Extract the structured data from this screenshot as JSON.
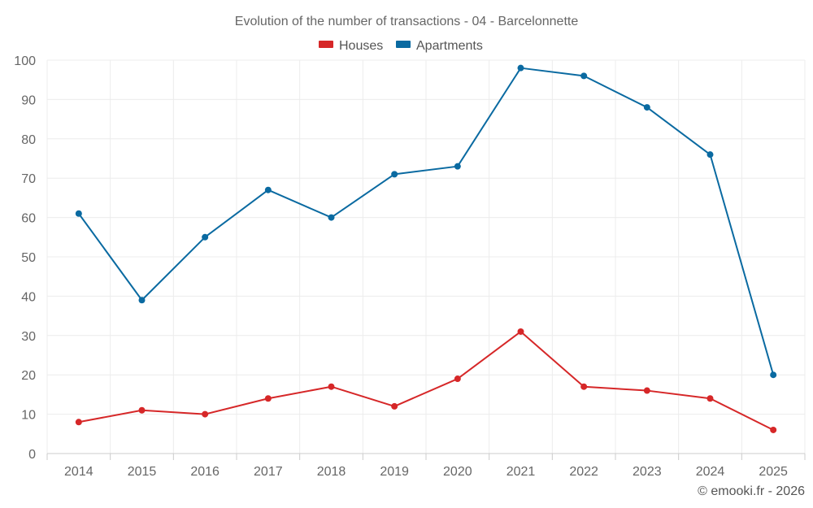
{
  "chart_data": {
    "type": "line",
    "title": "Evolution of the number of transactions - 04 - Barcelonnette",
    "categories": [
      "2014",
      "2015",
      "2016",
      "2017",
      "2018",
      "2019",
      "2020",
      "2021",
      "2022",
      "2023",
      "2024",
      "2025"
    ],
    "series": [
      {
        "name": "Houses",
        "color": "#d62728",
        "values": [
          8,
          11,
          10,
          14,
          17,
          12,
          19,
          31,
          17,
          16,
          14,
          6
        ]
      },
      {
        "name": "Apartments",
        "color": "#0a6aa1",
        "values": [
          61,
          39,
          55,
          67,
          60,
          71,
          73,
          98,
          96,
          88,
          76,
          20
        ]
      }
    ],
    "ylim": [
      0,
      100
    ],
    "yticks": [
      0,
      10,
      20,
      30,
      40,
      50,
      60,
      70,
      80,
      90,
      100
    ],
    "xlabel": "",
    "ylabel": "",
    "grid": true,
    "legend_position": "top-center"
  },
  "credit": "© emooki.fr - 2026"
}
